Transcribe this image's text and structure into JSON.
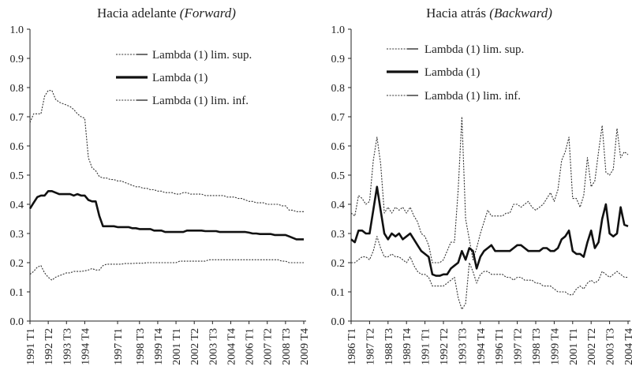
{
  "chart_data": [
    {
      "type": "line",
      "title": "Hacia adelante",
      "title_italic": "(Forward)",
      "xlabel": "",
      "ylabel": "",
      "ylim": [
        0,
        1.0
      ],
      "yticks": [
        "0.0",
        "0.1",
        "0.2",
        "0.3",
        "0.4",
        "0.5",
        "0.6",
        "0.7",
        "0.8",
        "0.9",
        "1.0"
      ],
      "x_start": "1991 T1",
      "x_end": "2009 T4",
      "period_count": 76,
      "x_tick_labels": [
        "1991 T1",
        "1992 T2",
        "1993 T3",
        "1994 T4",
        "1997 T1",
        "1998 T3",
        "1999 T4",
        "2001 T1",
        "2002 T2",
        "2003 T3",
        "2004 T4",
        "2006 T1",
        "2007 T2",
        "2008 T3",
        "2009 T4"
      ],
      "legend_placement": "top-right",
      "grid": false,
      "series": [
        {
          "name": "Lambda (1) lim. sup.",
          "style": "dotted",
          "values": [
            0.68,
            0.71,
            0.71,
            0.71,
            0.77,
            0.79,
            0.79,
            0.76,
            0.75,
            0.745,
            0.74,
            0.735,
            0.725,
            0.71,
            0.7,
            0.695,
            0.56,
            0.525,
            0.515,
            0.495,
            0.49,
            0.49,
            0.485,
            0.485,
            0.48,
            0.48,
            0.475,
            0.47,
            0.465,
            0.46,
            0.46,
            0.455,
            0.455,
            0.45,
            0.45,
            0.445,
            0.445,
            0.44,
            0.44,
            0.44,
            0.435,
            0.435,
            0.44,
            0.44,
            0.435,
            0.435,
            0.435,
            0.435,
            0.43,
            0.43,
            0.43,
            0.43,
            0.43,
            0.43,
            0.425,
            0.425,
            0.425,
            0.42,
            0.42,
            0.415,
            0.41,
            0.41,
            0.405,
            0.405,
            0.405,
            0.4,
            0.4,
            0.4,
            0.4,
            0.395,
            0.395,
            0.38,
            0.38,
            0.375,
            0.375,
            0.375
          ]
        },
        {
          "name": "Lambda (1)",
          "style": "thick",
          "values": [
            0.385,
            0.405,
            0.425,
            0.43,
            0.43,
            0.445,
            0.445,
            0.44,
            0.435,
            0.435,
            0.435,
            0.435,
            0.43,
            0.435,
            0.43,
            0.43,
            0.415,
            0.41,
            0.41,
            0.36,
            0.325,
            0.325,
            0.325,
            0.325,
            0.322,
            0.322,
            0.322,
            0.322,
            0.318,
            0.318,
            0.315,
            0.315,
            0.315,
            0.315,
            0.31,
            0.31,
            0.31,
            0.305,
            0.305,
            0.305,
            0.305,
            0.305,
            0.305,
            0.31,
            0.31,
            0.31,
            0.31,
            0.31,
            0.308,
            0.308,
            0.308,
            0.308,
            0.305,
            0.305,
            0.305,
            0.305,
            0.305,
            0.305,
            0.305,
            0.305,
            0.303,
            0.3,
            0.3,
            0.298,
            0.298,
            0.298,
            0.298,
            0.295,
            0.295,
            0.295,
            0.295,
            0.29,
            0.285,
            0.28,
            0.28,
            0.28
          ]
        },
        {
          "name": "Lambda (1) lim. inf.",
          "style": "dotted",
          "values": [
            0.16,
            0.17,
            0.185,
            0.19,
            0.165,
            0.15,
            0.14,
            0.15,
            0.155,
            0.16,
            0.165,
            0.165,
            0.17,
            0.17,
            0.17,
            0.172,
            0.175,
            0.18,
            0.175,
            0.175,
            0.19,
            0.195,
            0.195,
            0.195,
            0.195,
            0.195,
            0.197,
            0.197,
            0.197,
            0.198,
            0.198,
            0.198,
            0.2,
            0.2,
            0.2,
            0.2,
            0.2,
            0.2,
            0.2,
            0.2,
            0.2,
            0.205,
            0.205,
            0.205,
            0.205,
            0.205,
            0.205,
            0.205,
            0.205,
            0.21,
            0.21,
            0.21,
            0.21,
            0.21,
            0.21,
            0.21,
            0.21,
            0.21,
            0.21,
            0.21,
            0.21,
            0.21,
            0.21,
            0.21,
            0.21,
            0.21,
            0.21,
            0.21,
            0.21,
            0.205,
            0.205,
            0.2,
            0.2,
            0.2,
            0.2,
            0.2
          ]
        }
      ]
    },
    {
      "type": "line",
      "title": "Hacia atrás",
      "title_italic": "(Backward)",
      "xlabel": "",
      "ylabel": "",
      "ylim": [
        0,
        1.0
      ],
      "yticks": [
        "0.0",
        "0.1",
        "0.2",
        "0.3",
        "0.4",
        "0.5",
        "0.6",
        "0.7",
        "0.8",
        "0.9",
        "1.0"
      ],
      "x_start": "1986 T1",
      "x_end": "2004 T4",
      "period_count": 76,
      "x_tick_labels": [
        "1986 T1",
        "1987 T2",
        "1988 T3",
        "1989 T4",
        "1991 T1",
        "1992 T2",
        "1993 T3",
        "1994 T4",
        "1996 T1",
        "1997 T2",
        "1998 T3",
        "1999 T4",
        "2001 T1",
        "2002 T2",
        "2003 T3",
        "2004 T4"
      ],
      "legend_placement": "top",
      "grid": false,
      "series": [
        {
          "name": "Lambda (1) lim. sup.",
          "style": "dotted",
          "values": [
            0.37,
            0.36,
            0.43,
            0.42,
            0.4,
            0.41,
            0.55,
            0.63,
            0.54,
            0.37,
            0.39,
            0.37,
            0.39,
            0.38,
            0.39,
            0.37,
            0.39,
            0.36,
            0.34,
            0.3,
            0.29,
            0.26,
            0.2,
            0.2,
            0.2,
            0.21,
            0.24,
            0.27,
            0.27,
            0.45,
            0.7,
            0.35,
            0.28,
            0.21,
            0.25,
            0.3,
            0.34,
            0.38,
            0.36,
            0.36,
            0.36,
            0.36,
            0.37,
            0.37,
            0.4,
            0.4,
            0.39,
            0.4,
            0.41,
            0.39,
            0.38,
            0.39,
            0.4,
            0.42,
            0.44,
            0.41,
            0.45,
            0.55,
            0.58,
            0.63,
            0.42,
            0.42,
            0.39,
            0.43,
            0.56,
            0.46,
            0.48,
            0.58,
            0.67,
            0.51,
            0.5,
            0.52,
            0.66,
            0.56,
            0.58,
            0.57
          ]
        },
        {
          "name": "Lambda (1)",
          "style": "thick",
          "values": [
            0.28,
            0.27,
            0.31,
            0.31,
            0.3,
            0.3,
            0.38,
            0.46,
            0.38,
            0.3,
            0.28,
            0.3,
            0.29,
            0.3,
            0.28,
            0.29,
            0.3,
            0.28,
            0.26,
            0.24,
            0.23,
            0.22,
            0.16,
            0.155,
            0.155,
            0.16,
            0.16,
            0.18,
            0.19,
            0.2,
            0.24,
            0.21,
            0.25,
            0.24,
            0.18,
            0.22,
            0.24,
            0.25,
            0.26,
            0.24,
            0.24,
            0.24,
            0.24,
            0.24,
            0.25,
            0.26,
            0.26,
            0.25,
            0.24,
            0.24,
            0.24,
            0.24,
            0.25,
            0.25,
            0.24,
            0.24,
            0.25,
            0.28,
            0.29,
            0.31,
            0.24,
            0.23,
            0.23,
            0.22,
            0.27,
            0.31,
            0.25,
            0.27,
            0.35,
            0.4,
            0.3,
            0.29,
            0.3,
            0.39,
            0.33,
            0.325
          ]
        },
        {
          "name": "Lambda (1) lim. inf.",
          "style": "dotted",
          "values": [
            0.2,
            0.2,
            0.21,
            0.22,
            0.22,
            0.21,
            0.24,
            0.29,
            0.25,
            0.22,
            0.22,
            0.23,
            0.22,
            0.22,
            0.21,
            0.2,
            0.22,
            0.19,
            0.17,
            0.16,
            0.16,
            0.15,
            0.12,
            0.12,
            0.12,
            0.12,
            0.13,
            0.14,
            0.15,
            0.08,
            0.04,
            0.06,
            0.2,
            0.17,
            0.13,
            0.16,
            0.17,
            0.17,
            0.16,
            0.16,
            0.16,
            0.16,
            0.15,
            0.15,
            0.14,
            0.15,
            0.15,
            0.14,
            0.14,
            0.14,
            0.13,
            0.13,
            0.12,
            0.12,
            0.12,
            0.11,
            0.1,
            0.1,
            0.1,
            0.09,
            0.09,
            0.11,
            0.12,
            0.11,
            0.13,
            0.14,
            0.13,
            0.14,
            0.17,
            0.16,
            0.15,
            0.16,
            0.17,
            0.16,
            0.15,
            0.15
          ]
        }
      ]
    }
  ]
}
